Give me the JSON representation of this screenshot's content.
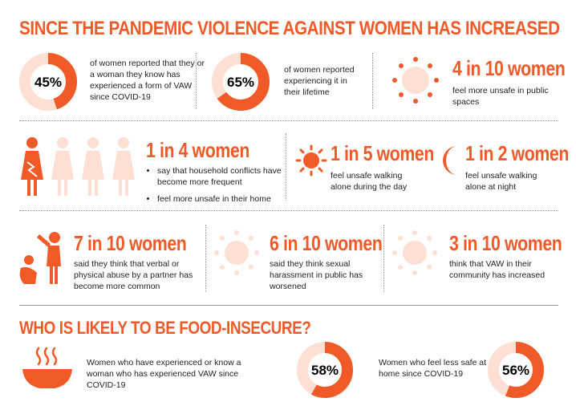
{
  "title": "SINCE THE PANDEMIC VIOLENCE AGAINST WOMEN HAS INCREASED",
  "stat1": {
    "value": 45,
    "label": "45%",
    "text": "of women reported that they or a woman they know has experienced a form of VAW since COVID-19"
  },
  "stat2": {
    "value": 65,
    "label": "65%",
    "text": "of women reported experiencing it in their lifetime"
  },
  "stat3": {
    "headline": "4 in 10 women",
    "text": "feel more unsafe in public spaces"
  },
  "stat4": {
    "headline": "1 in 4 women",
    "bullets": [
      "say that household conflicts have become more frequent",
      "feel more unsafe in their home"
    ]
  },
  "stat5": {
    "headline": "1 in 5 women",
    "text": "feel unsafe walking alone during the day"
  },
  "stat6": {
    "headline": "1 in 2 women",
    "text": "feel unsafe walking alone at night"
  },
  "stat7": {
    "headline": "7 in 10 women",
    "text": "said they think that verbal or physical abuse by a partner has become more common"
  },
  "stat8": {
    "headline": "6 in 10 women",
    "text": "said they think sexual harassment in public has worsened"
  },
  "stat9": {
    "headline": "3 in 10 women",
    "text": "think that VAW in their community has increased"
  },
  "food_title": "WHO IS LIKELY TO BE FOOD-INSECURE?",
  "food1": {
    "value": 58,
    "label": "58%",
    "text": "Women who have experienced or know a woman who has experienced VAW since COVID-19"
  },
  "food2": {
    "value": 56,
    "label": "56%",
    "text": "Women who feel less safe at home since COVID-19"
  },
  "colors": {
    "accent": "#f05a28",
    "light": "#fde0d3"
  }
}
